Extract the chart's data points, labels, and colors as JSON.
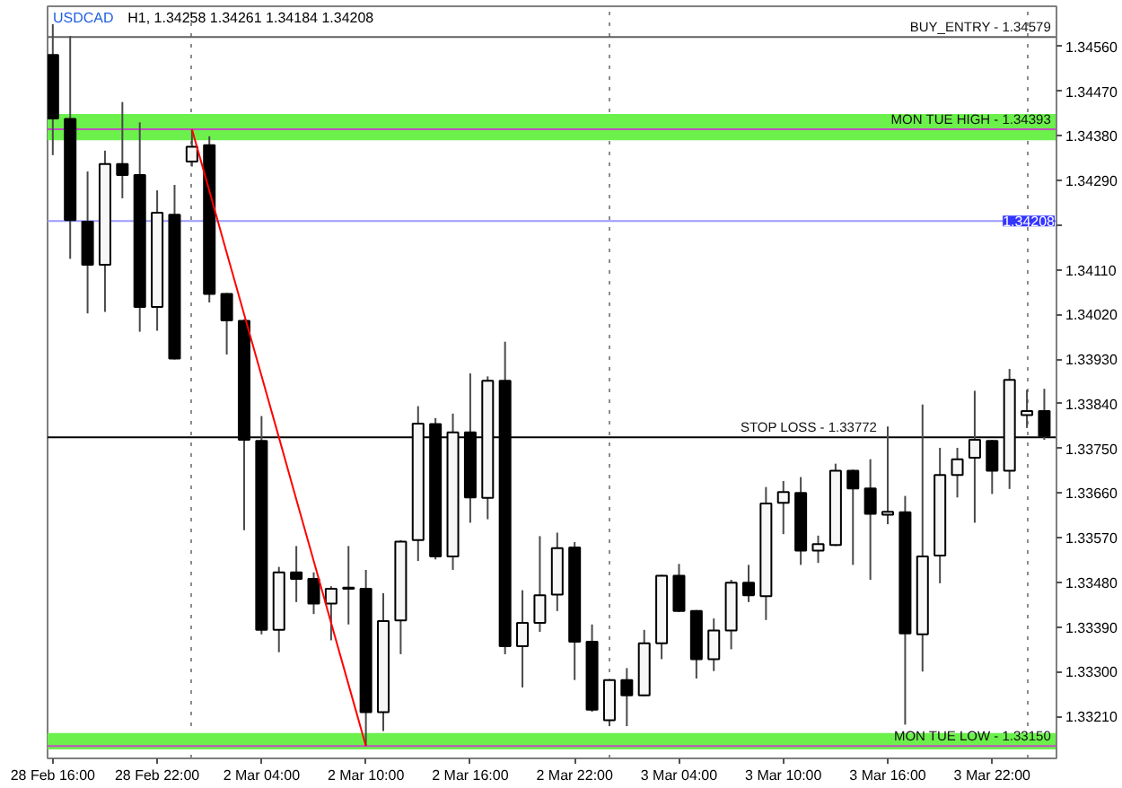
{
  "chart_data": {
    "type": "candlestick",
    "title": "USDCAD",
    "subtitle": "H1, 1.34258 1.34261 1.34184 1.34208",
    "grid": "x",
    "categories": [
      "28 Feb 16:00",
      null,
      null,
      null,
      null,
      null,
      "28 Feb 22:00",
      null,
      null,
      null,
      null,
      null,
      "2 Mar 04:00",
      null,
      null,
      null,
      null,
      null,
      "2 Mar 10:00",
      null,
      null,
      null,
      null,
      null,
      "2 Mar 16:00",
      null,
      null,
      null,
      null,
      null,
      "2 Mar 22:00",
      null,
      null,
      null,
      null,
      null,
      "3 Mar 04:00",
      null,
      null,
      null,
      null,
      null,
      "3 Mar 10:00",
      null,
      null,
      null,
      null,
      null,
      "3 Mar 16:00",
      null,
      null,
      null,
      null,
      null,
      "3 Mar 22:00",
      null,
      null,
      null
    ],
    "ohlc": [
      [
        1.34543,
        1.34605,
        1.34341,
        1.34415
      ],
      [
        1.34414,
        1.34581,
        1.34132,
        1.3421
      ],
      [
        1.34207,
        1.34308,
        1.34022,
        1.3412
      ],
      [
        1.3412,
        1.3435,
        1.34025,
        1.34323
      ],
      [
        1.34323,
        1.34448,
        1.34254,
        1.34301
      ],
      [
        1.34301,
        1.34407,
        1.33985,
        1.34035
      ],
      [
        1.34035,
        1.3427,
        1.33987,
        1.34225
      ],
      [
        1.34221,
        1.34281,
        1.33929,
        1.33931
      ],
      [
        1.34328,
        1.34393,
        1.34318,
        1.34358
      ],
      [
        1.34361,
        1.34379,
        1.34044,
        1.34061
      ],
      [
        1.34061,
        1.34063,
        1.33939,
        1.34008
      ],
      [
        1.34007,
        1.3401,
        1.33585,
        1.33767
      ],
      [
        1.33765,
        1.33815,
        1.33375,
        1.33384
      ],
      [
        1.33384,
        1.33511,
        1.33339,
        1.335
      ],
      [
        1.335,
        1.33553,
        1.3344,
        1.33487
      ],
      [
        1.33487,
        1.335,
        1.33416,
        1.33437
      ],
      [
        1.33437,
        1.33472,
        1.33363,
        1.33467
      ],
      [
        1.33469,
        1.33553,
        1.33395,
        1.33467
      ],
      [
        1.33467,
        1.33505,
        1.3315,
        1.33218
      ],
      [
        1.33218,
        1.33458,
        1.3318,
        1.33402
      ],
      [
        1.33403,
        1.33565,
        1.33335,
        1.33562
      ],
      [
        1.33565,
        1.33835,
        1.33523,
        1.338
      ],
      [
        1.33799,
        1.33811,
        1.33526,
        1.33532
      ],
      [
        1.33532,
        1.3382,
        1.33505,
        1.33782
      ],
      [
        1.33782,
        1.33901,
        1.336,
        1.33651
      ],
      [
        1.3365,
        1.33895,
        1.33607,
        1.33886
      ],
      [
        1.33886,
        1.33965,
        1.33335,
        1.33351
      ],
      [
        1.33351,
        1.33464,
        1.33268,
        1.33398
      ],
      [
        1.33398,
        1.33573,
        1.3338,
        1.33454
      ],
      [
        1.33455,
        1.3358,
        1.33422,
        1.33549
      ],
      [
        1.3355,
        1.33561,
        1.33283,
        1.3336
      ],
      [
        1.3336,
        1.33395,
        1.33219,
        1.33223
      ],
      [
        1.33202,
        1.33285,
        1.3319,
        1.33283
      ],
      [
        1.33283,
        1.33307,
        1.3319,
        1.33252
      ],
      [
        1.33252,
        1.33384,
        1.3325,
        1.33357
      ],
      [
        1.33357,
        1.33495,
        1.33325,
        1.33493
      ],
      [
        1.33493,
        1.33517,
        1.3342,
        1.33422
      ],
      [
        1.33422,
        1.33424,
        1.33286,
        1.33325
      ],
      [
        1.33325,
        1.33407,
        1.33301,
        1.33383
      ],
      [
        1.33383,
        1.33485,
        1.33345,
        1.33479
      ],
      [
        1.33479,
        1.33515,
        1.3344,
        1.33454
      ],
      [
        1.33452,
        1.33672,
        1.33404,
        1.33639
      ],
      [
        1.3364,
        1.33684,
        1.33577,
        1.33662
      ],
      [
        1.3366,
        1.33692,
        1.33515,
        1.33544
      ],
      [
        1.33544,
        1.33574,
        1.33519,
        1.33557
      ],
      [
        1.33555,
        1.33719,
        1.33553,
        1.33705
      ],
      [
        1.33705,
        1.33707,
        1.33515,
        1.33669
      ],
      [
        1.33669,
        1.33728,
        1.33485,
        1.33618
      ],
      [
        1.33616,
        1.33794,
        1.33597,
        1.33622
      ],
      [
        1.33621,
        1.33654,
        1.33193,
        1.33377
      ],
      [
        1.33375,
        1.33838,
        1.333,
        1.33532
      ],
      [
        1.33534,
        1.33751,
        1.33478,
        1.33696
      ],
      [
        1.33696,
        1.33751,
        1.33651,
        1.33728
      ],
      [
        1.33731,
        1.33866,
        1.336,
        1.33767
      ],
      [
        1.33765,
        1.33767,
        1.33658,
        1.33705
      ],
      [
        1.33705,
        1.3391,
        1.33668,
        1.33888
      ],
      [
        1.33817,
        1.33868,
        1.33791,
        1.33825
      ],
      [
        1.33825,
        1.3387,
        1.33767,
        1.33775
      ]
    ],
    "series": [
      {
        "type": "line",
        "color": "#ff0000",
        "values": [
          null,
          null,
          null,
          null,
          null,
          null,
          null,
          null,
          1.34393,
          1.34269,
          1.34144,
          1.3402,
          1.33896,
          1.33772,
          1.33647,
          1.33523,
          1.33398,
          1.33274,
          1.3315,
          null,
          null,
          null,
          null,
          null,
          null,
          null,
          null,
          null,
          null,
          null,
          null,
          null,
          null,
          null,
          null,
          null,
          null,
          null,
          null,
          null,
          null,
          null,
          null,
          null,
          null,
          null,
          null,
          null,
          null,
          null,
          null,
          null,
          null,
          null,
          null,
          null,
          null,
          null
        ]
      }
    ],
    "ylim": [
      1.33125,
      1.34641
    ],
    "yticks": [
      {
        "value": 1.3456,
        "label": "1.34560"
      },
      {
        "value": 1.3447,
        "label": "1.34470"
      },
      {
        "value": 1.3438,
        "label": "1.34380"
      },
      {
        "value": 1.3429,
        "label": "1.34290"
      },
      {
        "value": 1.342,
        "label": null
      },
      {
        "value": 1.3411,
        "label": "1.34110"
      },
      {
        "value": 1.3402,
        "label": "1.34020"
      },
      {
        "value": 1.3393,
        "label": "1.33930"
      },
      {
        "value": 1.3384,
        "label": "1.33840"
      },
      {
        "value": 1.3375,
        "label": "1.33750"
      },
      {
        "value": 1.3366,
        "label": "1.33660"
      },
      {
        "value": 1.3357,
        "label": "1.33570"
      },
      {
        "value": 1.3348,
        "label": "1.33480"
      },
      {
        "value": 1.3339,
        "label": "1.33390"
      },
      {
        "value": 1.333,
        "label": "1.33300"
      },
      {
        "value": 1.3321,
        "label": "1.33210"
      }
    ],
    "bands": [
      {
        "axis": "y",
        "from": 1.34371,
        "to": 1.34424,
        "color": "#6cf04c"
      },
      {
        "axis": "y",
        "from": 1.33143,
        "to": 1.33176,
        "color": "#6cf04c"
      }
    ],
    "ref_lines": [
      {
        "axis": "y",
        "value": 1.34579,
        "label": "BUY_ENTRY - 1.34579",
        "color": "#606060"
      },
      {
        "axis": "y",
        "value": 1.34393,
        "label": "MON TUE HIGH - 1.34393",
        "color": "#c24fc2"
      },
      {
        "axis": "y",
        "value": 1.34208,
        "color": "#9a9aff"
      },
      {
        "axis": "y",
        "value": 1.33772,
        "label": "STOP LOSS - 1.33772",
        "color": "#000000"
      },
      {
        "axis": "y",
        "value": 1.3315,
        "label": "MON TUE LOW - 1.33150",
        "color": "#c24fc2"
      }
    ],
    "annotations": [
      {
        "text": "1.34208",
        "y": 1.34208
      }
    ]
  }
}
